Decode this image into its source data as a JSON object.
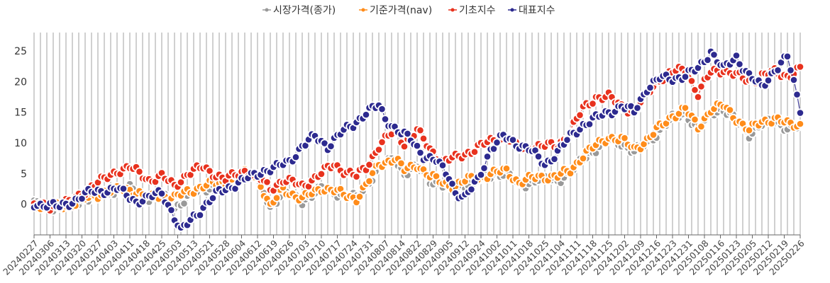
{
  "chart_data": {
    "type": "line",
    "ylim": [
      -5,
      28
    ],
    "yticks": [
      0,
      5,
      10,
      15,
      20,
      25
    ],
    "grid": "vertical",
    "legend_position": "top-center",
    "x_tick_labels": [
      "20240227",
      "20240306",
      "20240313",
      "20240320",
      "20240327",
      "20240403",
      "20240411",
      "20240418",
      "20240425",
      "20240503",
      "20240513",
      "20240521",
      "20240528",
      "20240604",
      "20240612",
      "20240619",
      "20240626",
      "20240703",
      "20240710",
      "20240717",
      "20240724",
      "20240731",
      "20240807",
      "20240814",
      "20240822",
      "20240829",
      "20240905",
      "20240912",
      "20240924",
      "20241002",
      "20241011",
      "20241018",
      "20241025",
      "20241104",
      "20241111",
      "20241118",
      "20241125",
      "20241202",
      "20241209",
      "20241216",
      "20241223",
      "20241231",
      "20250108",
      "20250116",
      "20250123",
      "20250205",
      "20250212",
      "20250219",
      "20250226"
    ],
    "points_per_series": 241,
    "series": [
      {
        "name": "시장가격(종가)",
        "color": "#999999",
        "anchors": [
          [
            0,
            0
          ],
          [
            5,
            -0.5
          ],
          [
            12,
            0
          ],
          [
            22,
            2
          ],
          [
            30,
            2.5
          ],
          [
            36,
            1
          ],
          [
            40,
            1.5
          ],
          [
            44,
            -0.5
          ],
          [
            48,
            1
          ],
          [
            53,
            2.5
          ],
          [
            60,
            3.5
          ],
          [
            66,
            5
          ],
          [
            70,
            4.5
          ],
          [
            74,
            -0.5
          ],
          [
            78,
            2
          ],
          [
            84,
            0.5
          ],
          [
            90,
            2.5
          ],
          [
            94,
            2
          ],
          [
            97,
            1.5
          ],
          [
            101,
            1
          ],
          [
            104,
            3
          ],
          [
            108,
            6
          ],
          [
            113,
            7.5
          ],
          [
            116,
            5
          ],
          [
            120,
            6
          ],
          [
            124,
            4
          ],
          [
            128,
            3
          ],
          [
            132,
            2.5
          ],
          [
            136,
            3.5
          ],
          [
            140,
            4
          ],
          [
            144,
            5
          ],
          [
            148,
            5
          ],
          [
            152,
            3
          ],
          [
            158,
            4
          ],
          [
            164,
            4
          ],
          [
            168,
            5
          ],
          [
            172,
            7.5
          ],
          [
            176,
            9
          ],
          [
            180,
            10.5
          ],
          [
            184,
            10
          ],
          [
            188,
            8.5
          ],
          [
            192,
            10
          ],
          [
            196,
            12
          ],
          [
            200,
            14
          ],
          [
            204,
            15
          ],
          [
            208,
            12
          ],
          [
            212,
            15
          ],
          [
            216,
            15.5
          ],
          [
            220,
            13.5
          ],
          [
            224,
            11.5
          ],
          [
            228,
            13
          ],
          [
            232,
            13.5
          ],
          [
            236,
            12.5
          ],
          [
            240,
            12.5
          ]
        ]
      },
      {
        "name": "기준가격(nav)",
        "color": "#ff8c1a",
        "anchors": [
          [
            0,
            0
          ],
          [
            5,
            -0.5
          ],
          [
            12,
            0
          ],
          [
            22,
            2
          ],
          [
            30,
            2.5
          ],
          [
            36,
            1
          ],
          [
            40,
            1.5
          ],
          [
            44,
            1
          ],
          [
            48,
            2
          ],
          [
            53,
            3
          ],
          [
            60,
            3.5
          ],
          [
            66,
            5
          ],
          [
            70,
            4.5
          ],
          [
            74,
            -0.5
          ],
          [
            78,
            2.5
          ],
          [
            84,
            0.8
          ],
          [
            90,
            2.7
          ],
          [
            94,
            2.2
          ],
          [
            97,
            1.5
          ],
          [
            101,
            1
          ],
          [
            104,
            3
          ],
          [
            108,
            6.5
          ],
          [
            113,
            7.5
          ],
          [
            116,
            5.5
          ],
          [
            120,
            6.5
          ],
          [
            124,
            4.5
          ],
          [
            128,
            3.5
          ],
          [
            132,
            3
          ],
          [
            136,
            4
          ],
          [
            140,
            4.5
          ],
          [
            144,
            5
          ],
          [
            148,
            5.5
          ],
          [
            152,
            3.5
          ],
          [
            158,
            4.5
          ],
          [
            164,
            4.5
          ],
          [
            168,
            5.5
          ],
          [
            172,
            8
          ],
          [
            176,
            9.5
          ],
          [
            180,
            11
          ],
          [
            184,
            10.5
          ],
          [
            188,
            9
          ],
          [
            192,
            10.5
          ],
          [
            196,
            12.5
          ],
          [
            200,
            14.5
          ],
          [
            204,
            15.5
          ],
          [
            208,
            12.5
          ],
          [
            212,
            15.5
          ],
          [
            216,
            16
          ],
          [
            220,
            14
          ],
          [
            224,
            12
          ],
          [
            228,
            13.5
          ],
          [
            232,
            14
          ],
          [
            236,
            13
          ],
          [
            240,
            13
          ]
        ]
      },
      {
        "name": "기초지수",
        "color": "#e8321e",
        "anchors": [
          [
            0,
            0
          ],
          [
            5,
            -0.5
          ],
          [
            12,
            0.5
          ],
          [
            18,
            3
          ],
          [
            22,
            4
          ],
          [
            26,
            5.5
          ],
          [
            30,
            6
          ],
          [
            36,
            4
          ],
          [
            40,
            4.5
          ],
          [
            44,
            3
          ],
          [
            48,
            5
          ],
          [
            53,
            6
          ],
          [
            60,
            4
          ],
          [
            66,
            5.5
          ],
          [
            70,
            4.5
          ],
          [
            74,
            2.5
          ],
          [
            78,
            4
          ],
          [
            84,
            3
          ],
          [
            90,
            5
          ],
          [
            94,
            6.5
          ],
          [
            97,
            5.5
          ],
          [
            101,
            4.5
          ],
          [
            104,
            6
          ],
          [
            108,
            9.5
          ],
          [
            113,
            12
          ],
          [
            116,
            10
          ],
          [
            120,
            12
          ],
          [
            124,
            9
          ],
          [
            128,
            7
          ],
          [
            132,
            7.5
          ],
          [
            136,
            8.5
          ],
          [
            140,
            9.5
          ],
          [
            144,
            10.5
          ],
          [
            148,
            11
          ],
          [
            152,
            9
          ],
          [
            158,
            9.5
          ],
          [
            164,
            9.5
          ],
          [
            168,
            12
          ],
          [
            172,
            15.5
          ],
          [
            176,
            17.5
          ],
          [
            180,
            17.5
          ],
          [
            184,
            16
          ],
          [
            188,
            15
          ],
          [
            192,
            18
          ],
          [
            196,
            20.5
          ],
          [
            200,
            21.5
          ],
          [
            204,
            22
          ],
          [
            208,
            18
          ],
          [
            212,
            21.5
          ],
          [
            216,
            22
          ],
          [
            220,
            21
          ],
          [
            224,
            20
          ],
          [
            228,
            21
          ],
          [
            232,
            21.5
          ],
          [
            236,
            21
          ],
          [
            240,
            22
          ]
        ]
      },
      {
        "name": "대표지수",
        "color": "#2d2a8f",
        "anchors": [
          [
            0,
            0
          ],
          [
            4,
            0
          ],
          [
            8,
            -0.5
          ],
          [
            12,
            0.5
          ],
          [
            18,
            2
          ],
          [
            26,
            2.5
          ],
          [
            32,
            0.5
          ],
          [
            36,
            1
          ],
          [
            40,
            2
          ],
          [
            43,
            -1
          ],
          [
            46,
            -4.5
          ],
          [
            50,
            -2
          ],
          [
            53,
            -0.5
          ],
          [
            58,
            2
          ],
          [
            62,
            3
          ],
          [
            68,
            4.5
          ],
          [
            72,
            5.5
          ],
          [
            76,
            6
          ],
          [
            80,
            7
          ],
          [
            84,
            9.5
          ],
          [
            88,
            11
          ],
          [
            92,
            9.5
          ],
          [
            96,
            11.5
          ],
          [
            100,
            13
          ],
          [
            104,
            15
          ],
          [
            108,
            16
          ],
          [
            110,
            14
          ],
          [
            114,
            12
          ],
          [
            118,
            10.5
          ],
          [
            122,
            8
          ],
          [
            126,
            7
          ],
          [
            130,
            4.5
          ],
          [
            132,
            2
          ],
          [
            135,
            1
          ],
          [
            139,
            4
          ],
          [
            143,
            9
          ],
          [
            147,
            11
          ],
          [
            151,
            10
          ],
          [
            155,
            9
          ],
          [
            160,
            6.5
          ],
          [
            164,
            8.5
          ],
          [
            168,
            11
          ],
          [
            172,
            13
          ],
          [
            176,
            14
          ],
          [
            180,
            15
          ],
          [
            184,
            16
          ],
          [
            188,
            15
          ],
          [
            192,
            19
          ],
          [
            196,
            20.5
          ],
          [
            200,
            20.5
          ],
          [
            204,
            21
          ],
          [
            208,
            22
          ],
          [
            212,
            25
          ],
          [
            216,
            22
          ],
          [
            220,
            24
          ],
          [
            224,
            21
          ],
          [
            228,
            19
          ],
          [
            232,
            22
          ],
          [
            236,
            24
          ],
          [
            240,
            15.5
          ]
        ]
      }
    ]
  }
}
